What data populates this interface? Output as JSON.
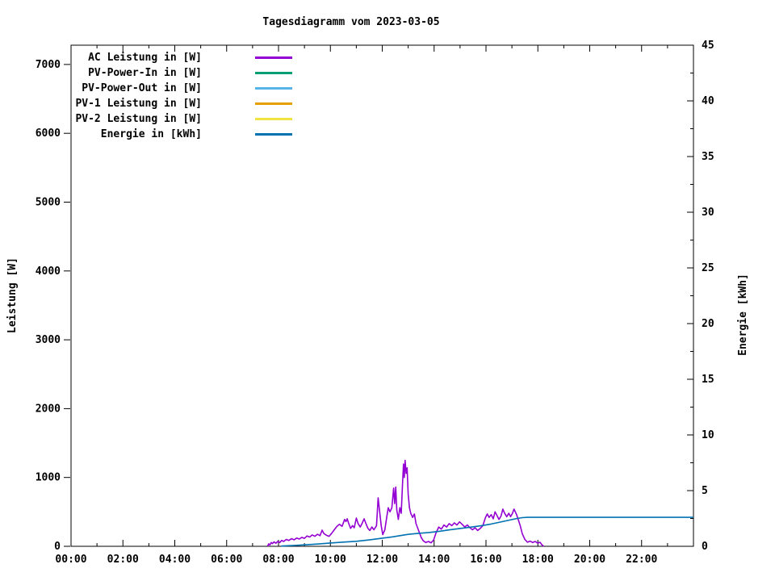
{
  "title": "Tagesdiagramm vom 2023-03-05",
  "chart_data": {
    "type": "line",
    "title": "Tagesdiagramm vom 2023-03-05",
    "grid": false,
    "legend_position": "top-left-inside",
    "x_axis": {
      "unit": "time-of-day",
      "range_hours": [
        0,
        24
      ],
      "major_tick_step_hours": 2,
      "minor_tick_step_hours": 1,
      "tick_labels": [
        "00:00",
        "02:00",
        "04:00",
        "06:00",
        "08:00",
        "10:00",
        "12:00",
        "14:00",
        "16:00",
        "18:00",
        "20:00",
        "22:00"
      ]
    },
    "y_left": {
      "label": "Leistung [W]",
      "range": [
        0,
        7280
      ],
      "ticks": [
        0,
        1000,
        2000,
        3000,
        4000,
        5000,
        6000,
        7000
      ],
      "tick_labels": [
        "0",
        "1000",
        "2000",
        "3000",
        "4000",
        "5000",
        "6000",
        "7000"
      ]
    },
    "y_right": {
      "label": "Energie [kWh]",
      "range": [
        0,
        45
      ],
      "ticks": [
        0,
        5,
        10,
        15,
        20,
        25,
        30,
        35,
        40,
        45
      ],
      "tick_labels": [
        "0",
        "5",
        "10",
        "15",
        "20",
        "25",
        "30",
        "35",
        "40",
        "45"
      ],
      "minor_tick_step": 2.5
    },
    "legend": [
      {
        "label": "AC Leistung in [W]",
        "color": "#9400d3"
      },
      {
        "label": "PV-Power-In in [W]",
        "color": "#009e73"
      },
      {
        "label": "PV-Power-Out in [W]",
        "color": "#56b4e9"
      },
      {
        "label": "PV-1 Leistung in [W]",
        "color": "#e69f00"
      },
      {
        "label": "PV-2 Leistung in [W]",
        "color": "#f0e442"
      },
      {
        "label": "Energie in [kWh]",
        "color": "#0072b2"
      }
    ],
    "series": [
      {
        "name": "AC Leistung in [W]",
        "axis": "left",
        "color": "#9400d3",
        "points": [
          [
            7.58,
            0
          ],
          [
            7.62,
            35
          ],
          [
            7.67,
            20
          ],
          [
            7.72,
            55
          ],
          [
            7.77,
            40
          ],
          [
            7.83,
            65
          ],
          [
            7.9,
            45
          ],
          [
            7.97,
            70
          ],
          [
            8.05,
            55
          ],
          [
            8.12,
            85
          ],
          [
            8.2,
            70
          ],
          [
            8.3,
            100
          ],
          [
            8.4,
            85
          ],
          [
            8.5,
            110
          ],
          [
            8.6,
            95
          ],
          [
            8.7,
            120
          ],
          [
            8.8,
            105
          ],
          [
            8.9,
            130
          ],
          [
            9.0,
            115
          ],
          [
            9.1,
            150
          ],
          [
            9.2,
            135
          ],
          [
            9.3,
            165
          ],
          [
            9.4,
            145
          ],
          [
            9.5,
            175
          ],
          [
            9.6,
            155
          ],
          [
            9.68,
            235
          ],
          [
            9.75,
            185
          ],
          [
            9.85,
            160
          ],
          [
            9.95,
            145
          ],
          [
            10.05,
            190
          ],
          [
            10.15,
            240
          ],
          [
            10.25,
            290
          ],
          [
            10.35,
            320
          ],
          [
            10.45,
            290
          ],
          [
            10.55,
            390
          ],
          [
            10.6,
            360
          ],
          [
            10.65,
            400
          ],
          [
            10.7,
            340
          ],
          [
            10.78,
            260
          ],
          [
            10.85,
            300
          ],
          [
            10.92,
            270
          ],
          [
            11.0,
            410
          ],
          [
            11.07,
            330
          ],
          [
            11.15,
            280
          ],
          [
            11.22,
            330
          ],
          [
            11.3,
            400
          ],
          [
            11.37,
            330
          ],
          [
            11.45,
            260
          ],
          [
            11.52,
            230
          ],
          [
            11.6,
            280
          ],
          [
            11.68,
            240
          ],
          [
            11.78,
            300
          ],
          [
            11.84,
            705
          ],
          [
            11.9,
            500
          ],
          [
            11.96,
            300
          ],
          [
            12.02,
            170
          ],
          [
            12.1,
            240
          ],
          [
            12.17,
            420
          ],
          [
            12.23,
            560
          ],
          [
            12.3,
            500
          ],
          [
            12.37,
            560
          ],
          [
            12.44,
            845
          ],
          [
            12.48,
            620
          ],
          [
            12.52,
            860
          ],
          [
            12.56,
            530
          ],
          [
            12.62,
            390
          ],
          [
            12.68,
            560
          ],
          [
            12.73,
            480
          ],
          [
            12.78,
            900
          ],
          [
            12.82,
            1195
          ],
          [
            12.85,
            1000
          ],
          [
            12.88,
            1250
          ],
          [
            12.92,
            1060
          ],
          [
            12.96,
            1140
          ],
          [
            13.0,
            760
          ],
          [
            13.05,
            560
          ],
          [
            13.1,
            480
          ],
          [
            13.17,
            420
          ],
          [
            13.24,
            470
          ],
          [
            13.3,
            330
          ],
          [
            13.4,
            230
          ],
          [
            13.5,
            130
          ],
          [
            13.58,
            80
          ],
          [
            13.68,
            55
          ],
          [
            13.78,
            70
          ],
          [
            13.88,
            50
          ],
          [
            13.98,
            90
          ],
          [
            14.08,
            200
          ],
          [
            14.18,
            280
          ],
          [
            14.28,
            250
          ],
          [
            14.38,
            310
          ],
          [
            14.48,
            280
          ],
          [
            14.58,
            330
          ],
          [
            14.68,
            300
          ],
          [
            14.78,
            340
          ],
          [
            14.88,
            310
          ],
          [
            14.98,
            355
          ],
          [
            15.08,
            320
          ],
          [
            15.18,
            280
          ],
          [
            15.28,
            310
          ],
          [
            15.38,
            270
          ],
          [
            15.48,
            240
          ],
          [
            15.58,
            270
          ],
          [
            15.68,
            230
          ],
          [
            15.78,
            260
          ],
          [
            15.88,
            300
          ],
          [
            15.98,
            420
          ],
          [
            16.05,
            470
          ],
          [
            16.12,
            420
          ],
          [
            16.2,
            460
          ],
          [
            16.28,
            400
          ],
          [
            16.35,
            500
          ],
          [
            16.42,
            450
          ],
          [
            16.5,
            390
          ],
          [
            16.58,
            440
          ],
          [
            16.65,
            540
          ],
          [
            16.72,
            480
          ],
          [
            16.8,
            430
          ],
          [
            16.88,
            480
          ],
          [
            16.95,
            430
          ],
          [
            17.02,
            480
          ],
          [
            17.08,
            540
          ],
          [
            17.13,
            500
          ],
          [
            17.18,
            460
          ],
          [
            17.25,
            380
          ],
          [
            17.32,
            300
          ],
          [
            17.4,
            180
          ],
          [
            17.5,
            100
          ],
          [
            17.6,
            60
          ],
          [
            17.7,
            75
          ],
          [
            17.8,
            55
          ],
          [
            17.9,
            70
          ],
          [
            18.0,
            45
          ],
          [
            18.08,
            60
          ],
          [
            18.15,
            25
          ],
          [
            18.22,
            0
          ]
        ]
      },
      {
        "name": "PV-Power-In in [W]",
        "axis": "left",
        "color": "#009e73",
        "points": []
      },
      {
        "name": "PV-Power-Out in [W]",
        "axis": "left",
        "color": "#56b4e9",
        "points": []
      },
      {
        "name": "PV-1 Leistung in [W]",
        "axis": "left",
        "color": "#e69f00",
        "points": []
      },
      {
        "name": "PV-2 Leistung in [W]",
        "axis": "left",
        "color": "#f0e442",
        "points": []
      },
      {
        "name": "Energie in [kWh]",
        "axis": "right",
        "color": "#0072b2",
        "points": [
          [
            8.1,
            0.02
          ],
          [
            8.6,
            0.08
          ],
          [
            9.0,
            0.13
          ],
          [
            9.5,
            0.2
          ],
          [
            10.0,
            0.3
          ],
          [
            10.5,
            0.38
          ],
          [
            11.0,
            0.45
          ],
          [
            11.5,
            0.57
          ],
          [
            12.0,
            0.73
          ],
          [
            12.4,
            0.85
          ],
          [
            12.8,
            1.0
          ],
          [
            13.0,
            1.07
          ],
          [
            13.4,
            1.17
          ],
          [
            13.8,
            1.24
          ],
          [
            14.2,
            1.35
          ],
          [
            14.6,
            1.48
          ],
          [
            15.0,
            1.6
          ],
          [
            15.4,
            1.72
          ],
          [
            15.8,
            1.84
          ],
          [
            16.2,
            2.0
          ],
          [
            16.6,
            2.2
          ],
          [
            17.0,
            2.4
          ],
          [
            17.2,
            2.5
          ],
          [
            17.4,
            2.57
          ],
          [
            17.6,
            2.6
          ],
          [
            24.0,
            2.6
          ]
        ]
      }
    ]
  }
}
